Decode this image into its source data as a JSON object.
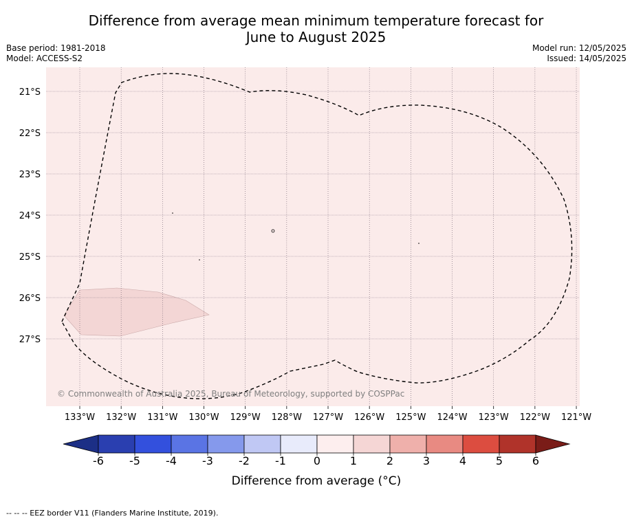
{
  "title_line1": "Difference from average mean minimum temperature forecast for",
  "title_line2": "June to August 2025",
  "base_period": "Base period: 1981-2018",
  "model": "Model: ACCESS-S2",
  "model_run": "Model run: 12/05/2025",
  "issued": "Issued: 14/05/2025",
  "copyright": "© Commonwealth of Australia 2025, Bureau of Meteorology, supported by COSPPac",
  "footer": "--  --  -- EEZ border V11 (Flanders Marine Institute, 2019).",
  "colorbar": {
    "label": "Difference from average (°C)",
    "ticks": [
      "-6",
      "-5",
      "-4",
      "-3",
      "-2",
      "-1",
      "0",
      "1",
      "2",
      "3",
      "4",
      "5",
      "6"
    ],
    "colors": [
      "#1c2f86",
      "#2a3fb0",
      "#3350dd",
      "#5a74e4",
      "#8599ec",
      "#c0c8f4",
      "#e8ebfb",
      "#fdeeee",
      "#f5d6d5",
      "#efb0ab",
      "#e88a82",
      "#dc4d40",
      "#b0332a",
      "#7a1c18"
    ]
  },
  "map": {
    "background_color": "#fbebea",
    "anomaly_patch_color": "#f3d6d5",
    "lon_labels": [
      "133°W",
      "132°W",
      "131°W",
      "130°W",
      "129°W",
      "128°W",
      "127°W",
      "126°W",
      "125°W",
      "124°W",
      "123°W",
      "122°W",
      "121°W"
    ],
    "lat_labels": [
      "21°S",
      "22°S",
      "23°S",
      "24°S",
      "25°S",
      "26°S",
      "27°S"
    ]
  }
}
